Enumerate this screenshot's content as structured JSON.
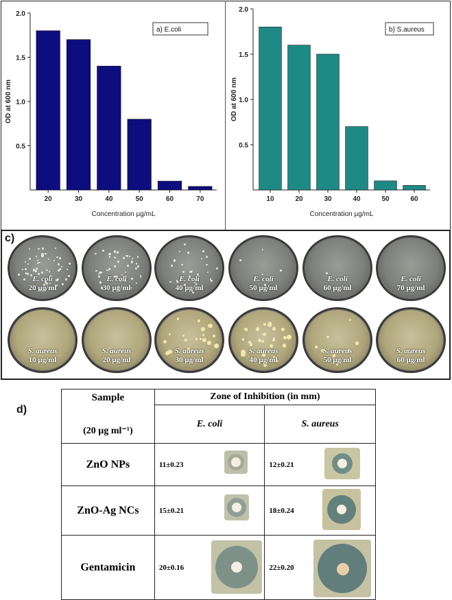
{
  "chart_data": [
    {
      "type": "bar",
      "legend": "a) E.coli",
      "legend_position": "top-right",
      "categories": [
        "20",
        "30",
        "40",
        "50",
        "60",
        "70"
      ],
      "values": [
        1.8,
        1.7,
        1.4,
        0.8,
        0.1,
        0.04
      ],
      "xlabel": "Concentration  µg/mL",
      "ylabel": "OD at 600 nm",
      "ylim": [
        0,
        2.0
      ],
      "yticks": [
        "0.5",
        "1.0",
        "1.5",
        "2.0"
      ],
      "bar_color": "#0d0d80"
    },
    {
      "type": "bar",
      "legend": "b) S.aureus",
      "legend_position": "top-right",
      "categories": [
        "10",
        "20",
        "30",
        "40",
        "50",
        "60"
      ],
      "values": [
        1.8,
        1.6,
        1.5,
        0.7,
        0.1,
        0.05
      ],
      "xlabel": "Concentration  µg/mL",
      "ylabel": "OD at 600 nm",
      "ylim": [
        0,
        2.0
      ],
      "yticks": [
        "0.5",
        "1.0",
        "1.5",
        "2.0"
      ],
      "bar_color": "#1e8a86"
    }
  ],
  "plates": {
    "label": "c)",
    "ecoli": [
      {
        "organism": "E. coli",
        "conc": "20 µg/ml"
      },
      {
        "organism": "E. coli",
        "conc": "30 µg/ml"
      },
      {
        "organism": "E. coli",
        "conc": "40 µg/ml"
      },
      {
        "organism": "E. coli",
        "conc": "50 µg/ml"
      },
      {
        "organism": "E. coli",
        "conc": "60 µg/ml"
      },
      {
        "organism": "E. coli",
        "conc": "70 µg/ml"
      }
    ],
    "saureus": [
      {
        "organism": "S. aureus",
        "conc": "10 µg/ml"
      },
      {
        "organism": "S. aureus",
        "conc": "20 µg/ml"
      },
      {
        "organism": "S. aureus",
        "conc": "30 µg/ml"
      },
      {
        "organism": "S. aureus",
        "conc": "40 µg/ml"
      },
      {
        "organism": "S. aureus",
        "conc": "50 µg/ml"
      },
      {
        "organism": "S. aureus",
        "conc": "60 µg/ml"
      }
    ]
  },
  "table": {
    "label": "d)",
    "sample_header": "Sample",
    "sample_sub": "(20 µg ml⁻¹)",
    "zone_header": "Zone of Inhibition (in mm)",
    "col_ecoli": "E. coli",
    "col_saureus": "S. aureus",
    "rows": [
      {
        "name": "ZnO NPs",
        "ecoli": "11±0.23",
        "saureus": "12±0.21"
      },
      {
        "name": "ZnO-Ag NCs",
        "ecoli": "15±0.21",
        "saureus": "18±0.24"
      },
      {
        "name": "Gentamicin",
        "ecoli": "20±0.16",
        "saureus": "22±0.20"
      }
    ]
  }
}
